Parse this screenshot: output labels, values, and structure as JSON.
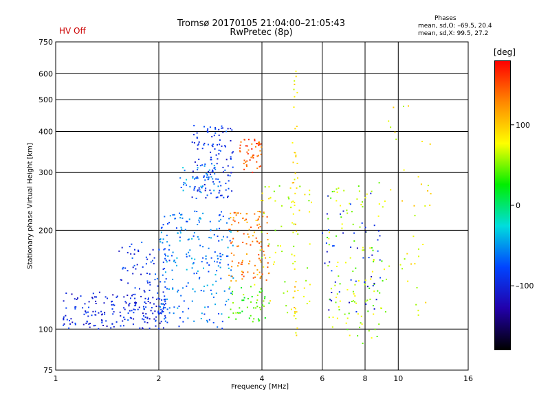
{
  "header": {
    "title_line1": "Tromsø 20170105 21:04:00–21:05:43",
    "title_line2": "RwPretec (8p)",
    "status": "HV Off"
  },
  "phases_box": {
    "title": "Phases",
    "line_o": "mean, sd,O: –69.5, 20.4",
    "line_x": "mean, sd,X:  99.5, 27.2"
  },
  "colorbar": {
    "unit": "[deg]",
    "range": [
      -180,
      180
    ],
    "ticks": [
      "100",
      "0",
      "–100"
    ],
    "tick_values": [
      100,
      0,
      -100
    ],
    "colors": [
      "#ff0000",
      "#ff8800",
      "#ffff00",
      "#00ee00",
      "#00dddd",
      "#0044ff",
      "#2200aa",
      "#000000"
    ]
  },
  "chart_data": {
    "type": "scatter",
    "xlabel": "Frequency [MHz]",
    "ylabel": "Stationary phase Virtual Height [km]",
    "x_scale": "log",
    "y_scale": "log",
    "xlim": [
      1,
      16
    ],
    "ylim": [
      75,
      750
    ],
    "grid": true,
    "x_ticks": [
      {
        "value": 1,
        "label": "1"
      },
      {
        "value": 2,
        "label": "2"
      },
      {
        "value": 4,
        "label": "4"
      },
      {
        "value": 6,
        "label": "6"
      },
      {
        "value": 8,
        "label": "8"
      },
      {
        "value": 10,
        "label": "10"
      },
      {
        "value": 16,
        "label": "16"
      }
    ],
    "y_ticks": [
      {
        "value": 75,
        "label": "75"
      },
      {
        "value": 100,
        "label": "100"
      },
      {
        "value": 200,
        "label": "200"
      },
      {
        "value": 300,
        "label": "300"
      },
      {
        "value": 400,
        "label": "400"
      },
      {
        "value": 500,
        "label": "500"
      },
      {
        "value": 600,
        "label": "600"
      },
      {
        "value": 750,
        "label": "750"
      }
    ],
    "clusters": [
      {
        "freq_range": [
          1.05,
          2.1
        ],
        "height_range": [
          100,
          130
        ],
        "phase": -100,
        "count": 170
      },
      {
        "freq_range": [
          1.5,
          2.15
        ],
        "height_range": [
          105,
          185
        ],
        "phase": -90,
        "count": 90
      },
      {
        "freq_range": [
          2.0,
          3.3
        ],
        "height_range": [
          100,
          130
        ],
        "phase": -65,
        "count": 50
      },
      {
        "freq_range": [
          2.0,
          3.3
        ],
        "height_range": [
          130,
          230
        ],
        "phase": -60,
        "count": 170
      },
      {
        "freq_range": [
          2.5,
          3.3
        ],
        "height_range": [
          250,
          420
        ],
        "phase": -90,
        "count": 130
      },
      {
        "freq_range": [
          2.3,
          3.0
        ],
        "height_range": [
          260,
          320
        ],
        "phase": -55,
        "count": 40
      },
      {
        "freq_range": [
          3.2,
          4.2
        ],
        "height_range": [
          105,
          135
        ],
        "phase": 40,
        "count": 50
      },
      {
        "freq_range": [
          3.2,
          4.2
        ],
        "height_range": [
          140,
          230
        ],
        "phase": 130,
        "count": 110
      },
      {
        "freq_range": [
          3.4,
          4.0
        ],
        "height_range": [
          300,
          380
        ],
        "phase": 150,
        "count": 50
      },
      {
        "freq_range": [
          3.8,
          5.6
        ],
        "height_range": [
          110,
          280
        ],
        "phase": 70,
        "count": 70
      },
      {
        "freq_range": [
          4.9,
          5.1
        ],
        "height_range": [
          95,
          620
        ],
        "phase": 90,
        "count": 45
      },
      {
        "freq_range": [
          6.2,
          9.2
        ],
        "height_range": [
          90,
          280
        ],
        "phase": 60,
        "count": 120
      },
      {
        "freq_range": [
          6.0,
          9.0
        ],
        "height_range": [
          110,
          260
        ],
        "phase": -100,
        "count": 50
      },
      {
        "freq_range": [
          9.0,
          12.5
        ],
        "height_range": [
          110,
          480
        ],
        "phase": 80,
        "count": 40
      }
    ]
  }
}
